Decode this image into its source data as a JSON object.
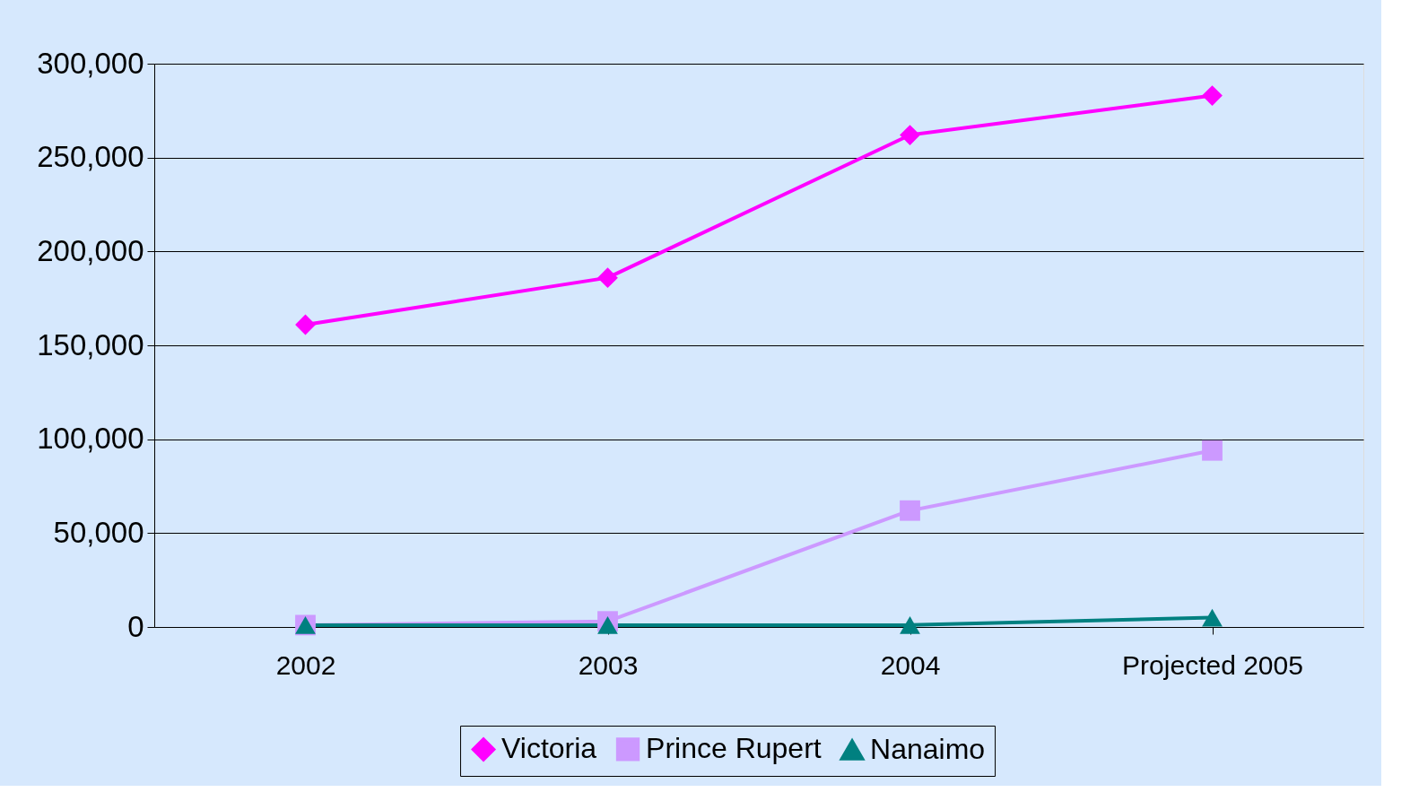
{
  "chart_data": {
    "type": "line",
    "categories": [
      "2002",
      "2003",
      "2004",
      "Projected 2005"
    ],
    "series": [
      {
        "name": "Victoria",
        "color": "#ff00ff",
        "marker": "diamond",
        "values": [
          161000,
          186000,
          262000,
          283000
        ]
      },
      {
        "name": "Prince Rupert",
        "color": "#cc99ff",
        "marker": "square",
        "values": [
          1000,
          3000,
          62000,
          94000
        ]
      },
      {
        "name": "Nanaimo",
        "color": "#008080",
        "marker": "triangle",
        "values": [
          1000,
          1000,
          1000,
          5000
        ]
      }
    ],
    "ylim": [
      0,
      300000
    ],
    "yticks": [
      {
        "value": 0,
        "label": "0"
      },
      {
        "value": 50000,
        "label": "50,000"
      },
      {
        "value": 100000,
        "label": "100,000"
      },
      {
        "value": 150000,
        "label": "150,000"
      },
      {
        "value": 200000,
        "label": "200,000"
      },
      {
        "value": 250000,
        "label": "250,000"
      },
      {
        "value": 300000,
        "label": "300,000"
      }
    ],
    "grid": "y",
    "legend": "bottom",
    "line_style": "solid"
  }
}
